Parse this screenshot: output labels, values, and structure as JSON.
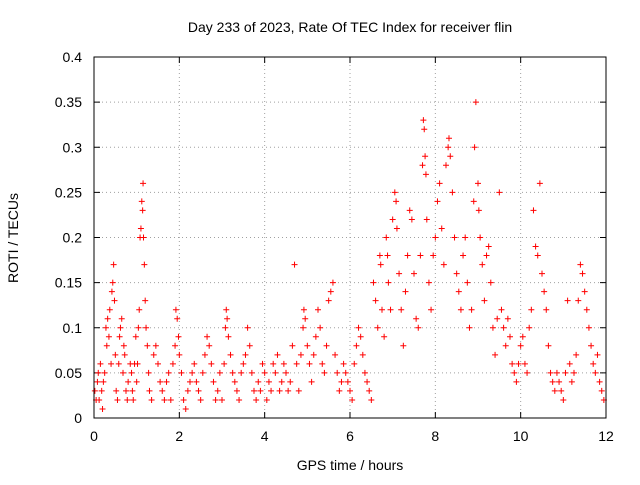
{
  "chart_data": {
    "type": "scatter",
    "title": "Day 233 of 2023, Rate Of TEC Index for receiver flin",
    "xlabel": "GPS time / hours",
    "ylabel": "ROTI / TECUs",
    "xlim": [
      0,
      12
    ],
    "ylim": [
      0,
      0.4
    ],
    "xticks": [
      0,
      2,
      4,
      6,
      8,
      10,
      12
    ],
    "yticks": [
      0,
      0.05,
      0.1,
      0.15,
      0.2,
      0.25,
      0.3,
      0.35,
      0.4
    ],
    "xtick_labels": [
      "0",
      "2",
      "4",
      "6",
      "8",
      "10",
      "12"
    ],
    "ytick_labels": [
      "0",
      "0.05",
      "0.1",
      "0.15",
      "0.2",
      "0.25",
      "0.3",
      "0.35",
      "0.4"
    ],
    "grid": true,
    "marker": "+",
    "color": "#ff0000",
    "series": [
      {
        "points": [
          [
            0.02,
            0.03
          ],
          [
            0.05,
            0.02
          ],
          [
            0.08,
            0.04
          ],
          [
            0.1,
            0.05
          ],
          [
            0.12,
            0.02
          ],
          [
            0.15,
            0.06
          ],
          [
            0.18,
            0.03
          ],
          [
            0.2,
            0.01
          ],
          [
            0.22,
            0.04
          ],
          [
            0.25,
            0.05
          ],
          [
            0.28,
            0.1
          ],
          [
            0.3,
            0.08
          ],
          [
            0.32,
            0.11
          ],
          [
            0.35,
            0.09
          ],
          [
            0.37,
            0.12
          ],
          [
            0.4,
            0.06
          ],
          [
            0.42,
            0.14
          ],
          [
            0.44,
            0.15
          ],
          [
            0.46,
            0.17
          ],
          [
            0.48,
            0.13
          ],
          [
            0.5,
            0.07
          ],
          [
            0.52,
            0.03
          ],
          [
            0.55,
            0.02
          ],
          [
            0.58,
            0.06
          ],
          [
            0.6,
            0.09
          ],
          [
            0.62,
            0.1
          ],
          [
            0.65,
            0.11
          ],
          [
            0.68,
            0.05
          ],
          [
            0.7,
            0.08
          ],
          [
            0.72,
            0.07
          ],
          [
            0.75,
            0.03
          ],
          [
            0.78,
            0.02
          ],
          [
            0.8,
            0.04
          ],
          [
            0.85,
            0.06
          ],
          [
            0.88,
            0.05
          ],
          [
            0.9,
            0.03
          ],
          [
            0.92,
            0.02
          ],
          [
            0.95,
            0.06
          ],
          [
            0.98,
            0.09
          ],
          [
            1.0,
            0.04
          ],
          [
            1.02,
            0.06
          ],
          [
            1.04,
            0.1
          ],
          [
            1.06,
            0.12
          ],
          [
            1.08,
            0.2
          ],
          [
            1.1,
            0.21
          ],
          [
            1.12,
            0.24
          ],
          [
            1.14,
            0.23
          ],
          [
            1.15,
            0.26
          ],
          [
            1.16,
            0.2
          ],
          [
            1.18,
            0.17
          ],
          [
            1.2,
            0.13
          ],
          [
            1.22,
            0.1
          ],
          [
            1.25,
            0.08
          ],
          [
            1.28,
            0.05
          ],
          [
            1.3,
            0.03
          ],
          [
            1.35,
            0.02
          ],
          [
            1.4,
            0.07
          ],
          [
            1.45,
            0.08
          ],
          [
            1.5,
            0.06
          ],
          [
            1.55,
            0.04
          ],
          [
            1.6,
            0.03
          ],
          [
            1.65,
            0.02
          ],
          [
            1.7,
            0.04
          ],
          [
            1.75,
            0.05
          ],
          [
            1.8,
            0.02
          ],
          [
            1.85,
            0.06
          ],
          [
            1.9,
            0.08
          ],
          [
            1.92,
            0.12
          ],
          [
            1.95,
            0.11
          ],
          [
            1.98,
            0.09
          ],
          [
            2.0,
            0.07
          ],
          [
            2.05,
            0.05
          ],
          [
            2.1,
            0.02
          ],
          [
            2.15,
            0.01
          ],
          [
            2.2,
            0.03
          ],
          [
            2.25,
            0.04
          ],
          [
            2.3,
            0.05
          ],
          [
            2.35,
            0.06
          ],
          [
            2.4,
            0.04
          ],
          [
            2.45,
            0.03
          ],
          [
            2.5,
            0.02
          ],
          [
            2.55,
            0.05
          ],
          [
            2.6,
            0.07
          ],
          [
            2.65,
            0.09
          ],
          [
            2.7,
            0.08
          ],
          [
            2.75,
            0.06
          ],
          [
            2.8,
            0.04
          ],
          [
            2.85,
            0.02
          ],
          [
            2.9,
            0.03
          ],
          [
            2.95,
            0.05
          ],
          [
            3.0,
            0.02
          ],
          [
            3.05,
            0.06
          ],
          [
            3.08,
            0.1
          ],
          [
            3.1,
            0.12
          ],
          [
            3.12,
            0.11
          ],
          [
            3.15,
            0.09
          ],
          [
            3.2,
            0.07
          ],
          [
            3.25,
            0.05
          ],
          [
            3.3,
            0.04
          ],
          [
            3.35,
            0.03
          ],
          [
            3.4,
            0.02
          ],
          [
            3.45,
            0.05
          ],
          [
            3.5,
            0.06
          ],
          [
            3.55,
            0.07
          ],
          [
            3.6,
            0.1
          ],
          [
            3.65,
            0.08
          ],
          [
            3.7,
            0.05
          ],
          [
            3.75,
            0.03
          ],
          [
            3.8,
            0.02
          ],
          [
            3.85,
            0.04
          ],
          [
            3.9,
            0.03
          ],
          [
            3.95,
            0.06
          ],
          [
            4.0,
            0.05
          ],
          [
            4.05,
            0.02
          ],
          [
            4.1,
            0.04
          ],
          [
            4.15,
            0.03
          ],
          [
            4.2,
            0.06
          ],
          [
            4.25,
            0.05
          ],
          [
            4.3,
            0.07
          ],
          [
            4.35,
            0.03
          ],
          [
            4.4,
            0.04
          ],
          [
            4.45,
            0.06
          ],
          [
            4.5,
            0.05
          ],
          [
            4.55,
            0.03
          ],
          [
            4.6,
            0.04
          ],
          [
            4.65,
            0.08
          ],
          [
            4.7,
            0.17
          ],
          [
            4.75,
            0.06
          ],
          [
            4.8,
            0.03
          ],
          [
            4.85,
            0.07
          ],
          [
            4.9,
            0.1
          ],
          [
            4.92,
            0.12
          ],
          [
            4.95,
            0.11
          ],
          [
            5.0,
            0.08
          ],
          [
            5.05,
            0.06
          ],
          [
            5.1,
            0.04
          ],
          [
            5.15,
            0.07
          ],
          [
            5.2,
            0.09
          ],
          [
            5.25,
            0.12
          ],
          [
            5.3,
            0.1
          ],
          [
            5.35,
            0.06
          ],
          [
            5.4,
            0.05
          ],
          [
            5.45,
            0.08
          ],
          [
            5.5,
            0.13
          ],
          [
            5.55,
            0.14
          ],
          [
            5.6,
            0.15
          ],
          [
            5.65,
            0.07
          ],
          [
            5.7,
            0.05
          ],
          [
            5.75,
            0.03
          ],
          [
            5.8,
            0.04
          ],
          [
            5.85,
            0.06
          ],
          [
            5.9,
            0.05
          ],
          [
            5.95,
            0.04
          ],
          [
            6.0,
            0.03
          ],
          [
            6.05,
            0.02
          ],
          [
            6.1,
            0.06
          ],
          [
            6.15,
            0.08
          ],
          [
            6.2,
            0.1
          ],
          [
            6.25,
            0.09
          ],
          [
            6.3,
            0.07
          ],
          [
            6.35,
            0.05
          ],
          [
            6.4,
            0.04
          ],
          [
            6.45,
            0.03
          ],
          [
            6.5,
            0.02
          ],
          [
            6.55,
            0.15
          ],
          [
            6.6,
            0.13
          ],
          [
            6.65,
            0.1
          ],
          [
            6.7,
            0.18
          ],
          [
            6.72,
            0.17
          ],
          [
            6.75,
            0.12
          ],
          [
            6.8,
            0.09
          ],
          [
            6.85,
            0.2
          ],
          [
            6.88,
            0.18
          ],
          [
            6.9,
            0.15
          ],
          [
            6.95,
            0.12
          ],
          [
            7.0,
            0.22
          ],
          [
            7.05,
            0.25
          ],
          [
            7.08,
            0.24
          ],
          [
            7.1,
            0.21
          ],
          [
            7.15,
            0.16
          ],
          [
            7.2,
            0.12
          ],
          [
            7.25,
            0.08
          ],
          [
            7.3,
            0.14
          ],
          [
            7.35,
            0.18
          ],
          [
            7.4,
            0.23
          ],
          [
            7.45,
            0.22
          ],
          [
            7.5,
            0.16
          ],
          [
            7.55,
            0.11
          ],
          [
            7.6,
            0.1
          ],
          [
            7.65,
            0.18
          ],
          [
            7.7,
            0.28
          ],
          [
            7.72,
            0.33
          ],
          [
            7.74,
            0.32
          ],
          [
            7.76,
            0.29
          ],
          [
            7.78,
            0.27
          ],
          [
            7.8,
            0.22
          ],
          [
            7.85,
            0.15
          ],
          [
            7.9,
            0.12
          ],
          [
            7.95,
            0.18
          ],
          [
            8.0,
            0.2
          ],
          [
            8.05,
            0.24
          ],
          [
            8.1,
            0.26
          ],
          [
            8.15,
            0.21
          ],
          [
            8.2,
            0.17
          ],
          [
            8.25,
            0.28
          ],
          [
            8.3,
            0.3
          ],
          [
            8.32,
            0.31
          ],
          [
            8.35,
            0.29
          ],
          [
            8.4,
            0.25
          ],
          [
            8.45,
            0.2
          ],
          [
            8.5,
            0.16
          ],
          [
            8.55,
            0.14
          ],
          [
            8.6,
            0.12
          ],
          [
            8.65,
            0.18
          ],
          [
            8.7,
            0.2
          ],
          [
            8.75,
            0.15
          ],
          [
            8.8,
            0.1
          ],
          [
            8.85,
            0.12
          ],
          [
            8.9,
            0.24
          ],
          [
            8.92,
            0.3
          ],
          [
            8.95,
            0.35
          ],
          [
            9.0,
            0.26
          ],
          [
            9.02,
            0.23
          ],
          [
            9.05,
            0.2
          ],
          [
            9.1,
            0.17
          ],
          [
            9.15,
            0.13
          ],
          [
            9.2,
            0.18
          ],
          [
            9.25,
            0.19
          ],
          [
            9.3,
            0.15
          ],
          [
            9.35,
            0.1
          ],
          [
            9.4,
            0.07
          ],
          [
            9.45,
            0.11
          ],
          [
            9.5,
            0.25
          ],
          [
            9.55,
            0.12
          ],
          [
            9.6,
            0.1
          ],
          [
            9.65,
            0.08
          ],
          [
            9.7,
            0.11
          ],
          [
            9.75,
            0.09
          ],
          [
            9.8,
            0.06
          ],
          [
            9.85,
            0.05
          ],
          [
            9.9,
            0.04
          ],
          [
            9.95,
            0.06
          ],
          [
            10.0,
            0.08
          ],
          [
            10.05,
            0.09
          ],
          [
            10.1,
            0.06
          ],
          [
            10.15,
            0.05
          ],
          [
            10.2,
            0.1
          ],
          [
            10.25,
            0.12
          ],
          [
            10.3,
            0.23
          ],
          [
            10.35,
            0.19
          ],
          [
            10.4,
            0.18
          ],
          [
            10.45,
            0.26
          ],
          [
            10.5,
            0.16
          ],
          [
            10.55,
            0.14
          ],
          [
            10.6,
            0.12
          ],
          [
            10.65,
            0.08
          ],
          [
            10.7,
            0.05
          ],
          [
            10.75,
            0.04
          ],
          [
            10.8,
            0.03
          ],
          [
            10.85,
            0.05
          ],
          [
            10.9,
            0.04
          ],
          [
            10.95,
            0.03
          ],
          [
            11.0,
            0.02
          ],
          [
            11.05,
            0.05
          ],
          [
            11.1,
            0.13
          ],
          [
            11.15,
            0.06
          ],
          [
            11.2,
            0.04
          ],
          [
            11.25,
            0.05
          ],
          [
            11.3,
            0.07
          ],
          [
            11.35,
            0.13
          ],
          [
            11.4,
            0.17
          ],
          [
            11.45,
            0.16
          ],
          [
            11.5,
            0.14
          ],
          [
            11.55,
            0.12
          ],
          [
            11.6,
            0.1
          ],
          [
            11.65,
            0.08
          ],
          [
            11.7,
            0.06
          ],
          [
            11.75,
            0.05
          ],
          [
            11.8,
            0.07
          ],
          [
            11.85,
            0.04
          ],
          [
            11.9,
            0.03
          ],
          [
            11.95,
            0.02
          ]
        ]
      }
    ]
  }
}
